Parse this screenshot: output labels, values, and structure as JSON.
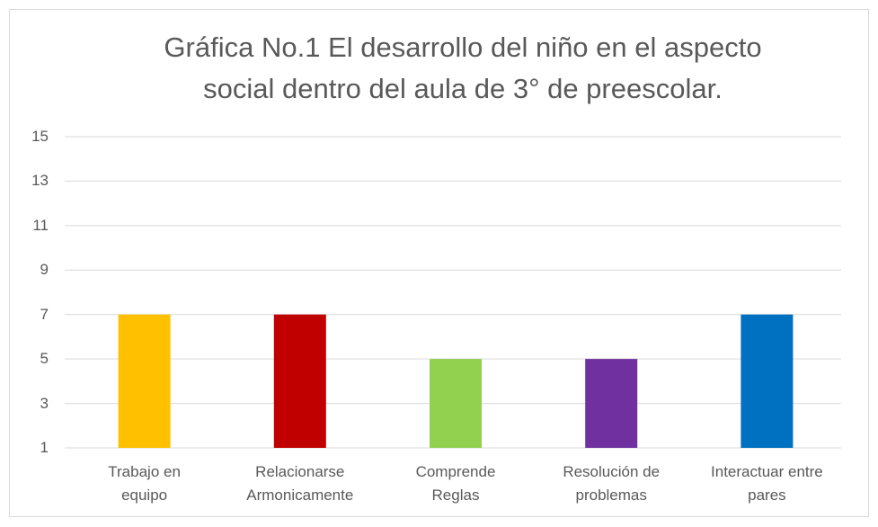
{
  "chart_data": {
    "type": "bar",
    "title": "Gráfica No.1 El desarrollo del niño en el aspecto social dentro del aula de 3° de preescolar.",
    "categories": [
      "Trabajo en\nequipo",
      "Relacionarse\nArmonicamente",
      "Comprende\nReglas",
      "Resolución de\nproblemas",
      "Interactuar entre\npares"
    ],
    "values": [
      7,
      7,
      5,
      5,
      7
    ],
    "colors": [
      "#FFC000",
      "#C00000",
      "#92D050",
      "#7030A0",
      "#0070C0"
    ],
    "ylim": [
      1,
      15
    ],
    "yticks": [
      1,
      3,
      5,
      7,
      9,
      11,
      13,
      15
    ],
    "grid": true
  }
}
